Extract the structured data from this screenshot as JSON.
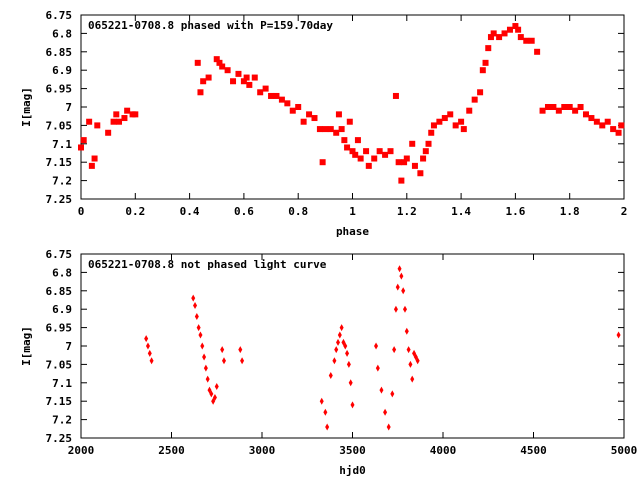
{
  "chart_data": [
    {
      "type": "scatter",
      "title": "065221-0708.8 phased with P=159.70day",
      "xlabel": "phase",
      "ylabel": "I[mag]",
      "xlim": [
        0,
        2
      ],
      "ylim": [
        6.75,
        7.25
      ],
      "y_inverted": true,
      "grid": false,
      "marker_color": "#ff0000",
      "x_ticks": [
        0,
        0.2,
        0.4,
        0.6,
        0.8,
        1,
        1.2,
        1.4,
        1.6,
        1.8,
        2
      ],
      "x_tick_labels": [
        "0",
        "0.2",
        "0.4",
        "0.6",
        "0.8",
        "1",
        "1.2",
        "1.4",
        "1.6",
        "1.8",
        "2"
      ],
      "y_ticks": [
        6.75,
        6.8,
        6.85,
        6.9,
        6.95,
        7,
        7.05,
        7.1,
        7.15,
        7.2,
        7.25
      ],
      "y_tick_labels": [
        "6.75",
        "6.8",
        "6.85",
        "6.9",
        "6.95",
        "7",
        "7.05",
        "7.1",
        "7.15",
        "7.2",
        "7.25"
      ],
      "series": [
        {
          "points": [
            [
              0.0,
              7.11
            ],
            [
              0.01,
              7.09
            ],
            [
              0.03,
              7.04
            ],
            [
              0.04,
              7.16
            ],
            [
              0.05,
              7.14
            ],
            [
              0.06,
              7.05
            ],
            [
              0.1,
              7.07
            ],
            [
              0.12,
              7.04
            ],
            [
              0.13,
              7.02
            ],
            [
              0.14,
              7.04
            ],
            [
              0.16,
              7.03
            ],
            [
              0.17,
              7.01
            ],
            [
              0.19,
              7.02
            ],
            [
              0.2,
              7.02
            ],
            [
              0.43,
              6.88
            ],
            [
              0.44,
              6.96
            ],
            [
              0.45,
              6.93
            ],
            [
              0.47,
              6.92
            ],
            [
              0.5,
              6.87
            ],
            [
              0.51,
              6.88
            ],
            [
              0.52,
              6.89
            ],
            [
              0.54,
              6.9
            ],
            [
              0.56,
              6.93
            ],
            [
              0.58,
              6.91
            ],
            [
              0.6,
              6.93
            ],
            [
              0.61,
              6.92
            ],
            [
              0.62,
              6.94
            ],
            [
              0.64,
              6.92
            ],
            [
              0.66,
              6.96
            ],
            [
              0.68,
              6.95
            ],
            [
              0.7,
              6.97
            ],
            [
              0.72,
              6.97
            ],
            [
              0.74,
              6.98
            ],
            [
              0.76,
              6.99
            ],
            [
              0.78,
              7.01
            ],
            [
              0.8,
              7.0
            ],
            [
              0.82,
              7.04
            ],
            [
              0.84,
              7.02
            ],
            [
              0.86,
              7.03
            ],
            [
              0.88,
              7.06
            ],
            [
              0.89,
              7.15
            ],
            [
              0.9,
              7.06
            ],
            [
              0.92,
              7.06
            ],
            [
              0.94,
              7.07
            ],
            [
              0.95,
              7.02
            ],
            [
              0.96,
              7.06
            ],
            [
              0.97,
              7.09
            ],
            [
              0.98,
              7.11
            ],
            [
              0.99,
              7.04
            ],
            [
              1.0,
              7.12
            ],
            [
              1.01,
              7.13
            ],
            [
              1.02,
              7.09
            ],
            [
              1.03,
              7.14
            ],
            [
              1.05,
              7.12
            ],
            [
              1.06,
              7.16
            ],
            [
              1.08,
              7.14
            ],
            [
              1.1,
              7.12
            ],
            [
              1.12,
              7.13
            ],
            [
              1.14,
              7.12
            ],
            [
              1.16,
              6.97
            ],
            [
              1.17,
              7.15
            ],
            [
              1.18,
              7.2
            ],
            [
              1.19,
              7.15
            ],
            [
              1.2,
              7.14
            ],
            [
              1.22,
              7.1
            ],
            [
              1.23,
              7.16
            ],
            [
              1.25,
              7.18
            ],
            [
              1.26,
              7.14
            ],
            [
              1.27,
              7.12
            ],
            [
              1.28,
              7.1
            ],
            [
              1.29,
              7.07
            ],
            [
              1.3,
              7.05
            ],
            [
              1.32,
              7.04
            ],
            [
              1.34,
              7.03
            ],
            [
              1.36,
              7.02
            ],
            [
              1.38,
              7.05
            ],
            [
              1.4,
              7.04
            ],
            [
              1.41,
              7.06
            ],
            [
              1.43,
              7.01
            ],
            [
              1.45,
              6.98
            ],
            [
              1.47,
              6.96
            ],
            [
              1.48,
              6.9
            ],
            [
              1.49,
              6.88
            ],
            [
              1.5,
              6.84
            ],
            [
              1.51,
              6.81
            ],
            [
              1.52,
              6.8
            ],
            [
              1.54,
              6.81
            ],
            [
              1.56,
              6.8
            ],
            [
              1.58,
              6.79
            ],
            [
              1.6,
              6.78
            ],
            [
              1.61,
              6.79
            ],
            [
              1.62,
              6.81
            ],
            [
              1.64,
              6.82
            ],
            [
              1.66,
              6.82
            ],
            [
              1.68,
              6.85
            ],
            [
              1.7,
              7.01
            ],
            [
              1.72,
              7.0
            ],
            [
              1.74,
              7.0
            ],
            [
              1.76,
              7.01
            ],
            [
              1.78,
              7.0
            ],
            [
              1.8,
              7.0
            ],
            [
              1.82,
              7.01
            ],
            [
              1.84,
              7.0
            ],
            [
              1.86,
              7.02
            ],
            [
              1.88,
              7.03
            ],
            [
              1.9,
              7.04
            ],
            [
              1.92,
              7.05
            ],
            [
              1.94,
              7.04
            ],
            [
              1.96,
              7.06
            ],
            [
              1.98,
              7.07
            ],
            [
              1.99,
              7.05
            ]
          ]
        }
      ]
    },
    {
      "type": "scatter",
      "title": "065221-0708.8 not phased light curve",
      "xlabel": "hjd0",
      "ylabel": "I[mag]",
      "xlim": [
        2000,
        5000
      ],
      "ylim": [
        6.75,
        7.25
      ],
      "y_inverted": true,
      "grid": false,
      "marker_color": "#ff0000",
      "x_ticks": [
        2000,
        2500,
        3000,
        3500,
        4000,
        4500,
        5000
      ],
      "x_tick_labels": [
        "2000",
        "2500",
        "3000",
        "3500",
        "4000",
        "4500",
        "5000"
      ],
      "y_ticks": [
        6.75,
        6.8,
        6.85,
        6.9,
        6.95,
        7,
        7.05,
        7.1,
        7.15,
        7.2,
        7.25
      ],
      "y_tick_labels": [
        "6.75",
        "6.8",
        "6.85",
        "6.9",
        "6.95",
        "7",
        "7.05",
        "7.1",
        "7.15",
        "7.2",
        "7.25"
      ],
      "series": [
        {
          "points": [
            [
              2360,
              6.98
            ],
            [
              2370,
              7.0
            ],
            [
              2380,
              7.02
            ],
            [
              2390,
              7.04
            ],
            [
              2620,
              6.87
            ],
            [
              2630,
              6.89
            ],
            [
              2640,
              6.92
            ],
            [
              2650,
              6.95
            ],
            [
              2660,
              6.97
            ],
            [
              2670,
              7.0
            ],
            [
              2680,
              7.03
            ],
            [
              2690,
              7.06
            ],
            [
              2700,
              7.09
            ],
            [
              2710,
              7.12
            ],
            [
              2720,
              7.13
            ],
            [
              2730,
              7.15
            ],
            [
              2740,
              7.14
            ],
            [
              2750,
              7.11
            ],
            [
              2780,
              7.01
            ],
            [
              2790,
              7.04
            ],
            [
              2880,
              7.01
            ],
            [
              2890,
              7.04
            ],
            [
              3330,
              7.15
            ],
            [
              3350,
              7.18
            ],
            [
              3360,
              7.22
            ],
            [
              3380,
              7.08
            ],
            [
              3400,
              7.04
            ],
            [
              3410,
              7.01
            ],
            [
              3420,
              6.99
            ],
            [
              3430,
              6.97
            ],
            [
              3440,
              6.95
            ],
            [
              3450,
              6.99
            ],
            [
              3460,
              7.0
            ],
            [
              3470,
              7.02
            ],
            [
              3480,
              7.05
            ],
            [
              3490,
              7.1
            ],
            [
              3500,
              7.16
            ],
            [
              3630,
              7.0
            ],
            [
              3640,
              7.06
            ],
            [
              3660,
              7.12
            ],
            [
              3680,
              7.18
            ],
            [
              3700,
              7.22
            ],
            [
              3720,
              7.13
            ],
            [
              3730,
              7.01
            ],
            [
              3740,
              6.9
            ],
            [
              3750,
              6.84
            ],
            [
              3760,
              6.79
            ],
            [
              3770,
              6.81
            ],
            [
              3780,
              6.85
            ],
            [
              3790,
              6.9
            ],
            [
              3800,
              6.96
            ],
            [
              3810,
              7.01
            ],
            [
              3820,
              7.05
            ],
            [
              3830,
              7.09
            ],
            [
              3840,
              7.02
            ],
            [
              3850,
              7.03
            ],
            [
              3860,
              7.04
            ],
            [
              4970,
              6.97
            ]
          ]
        }
      ]
    }
  ]
}
